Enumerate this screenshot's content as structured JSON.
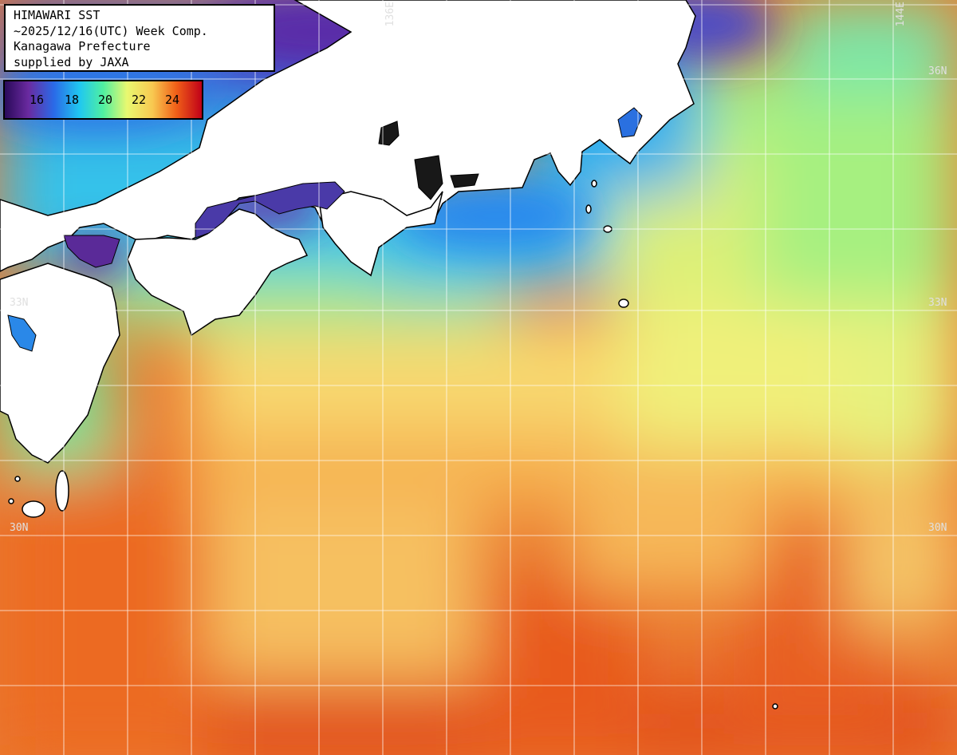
{
  "info": {
    "title": "HIMAWARI SST",
    "date": "~2025/12/16(UTC) Week Comp.",
    "org": "Kanagawa Prefecture",
    "credit": "supplied by JAXA"
  },
  "legend": {
    "ticks": [
      "16",
      "18",
      "20",
      "22",
      "24"
    ],
    "colors": [
      "#3a1a7a",
      "#7a3aa8",
      "#1a8cf0",
      "#28e8d8",
      "#8ef070",
      "#f6f27a",
      "#f6b040",
      "#ee5a10",
      "#c80010"
    ]
  },
  "grid_labels": {
    "lon_136": "136E",
    "lon_144": "144E",
    "lat_36_right": "36N",
    "lat_33_left": "33N",
    "lat_33_right": "33N",
    "lat_30_left": "30N",
    "lat_30_right": "30N"
  },
  "colors": {
    "land": "#ffffff",
    "coast": "#000000",
    "grid": "#ffffff"
  }
}
